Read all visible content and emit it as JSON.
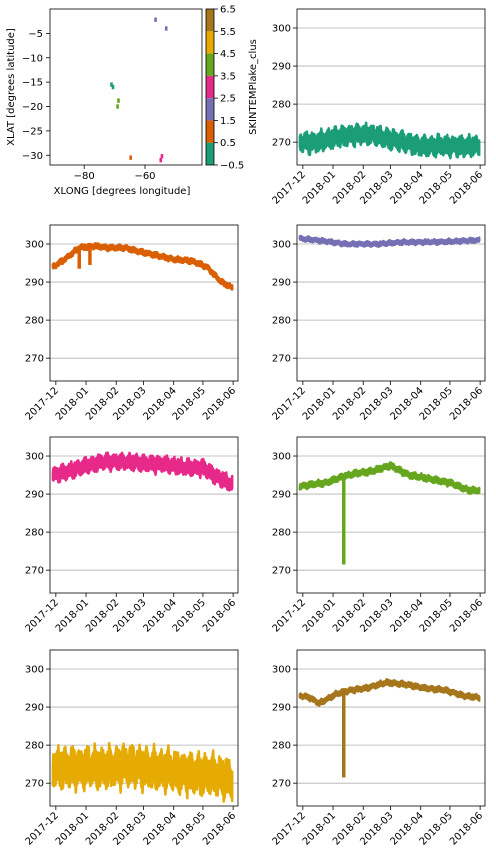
{
  "colors": {
    "cluster": [
      "#1b9e77",
      "#d95f02",
      "#7570b3",
      "#e7298a",
      "#66a61e",
      "#e6ab02",
      "#a6761d"
    ],
    "grid": "#b0b0b0",
    "axis": "#000000"
  },
  "map_panel": {
    "xlabel": "XLONG [degrees longitude]",
    "ylabel": "XLAT [degrees latitude]",
    "x_ticks": [
      "−80",
      "−60"
    ],
    "y_ticks": [
      "−5",
      "−10",
      "−15",
      "−20",
      "−25",
      "−30"
    ],
    "colorbar_label": "SKINTEMPlake_clus",
    "colorbar_ticks": [
      "6.5",
      "5.5",
      "4.5",
      "3.5",
      "2.5",
      "1.5",
      "0.5",
      "−0.5"
    ]
  },
  "time_axis_ticks": [
    "2017-12",
    "2018-01",
    "2018-02",
    "2018-03",
    "2018-04",
    "2018-05",
    "2018-06"
  ],
  "y_axis_ticks": [
    "300",
    "290",
    "280",
    "270"
  ],
  "chart_data": [
    {
      "type": "heatmap",
      "description_source": "cluster map",
      "xlim": [
        -90,
        -40
      ],
      "ylim": [
        -32,
        0
      ],
      "xlabel": "XLONG [degrees longitude]",
      "ylabel": "XLAT [degrees latitude]",
      "colorbar": {
        "label": "SKINTEMPlake_clus",
        "range": [
          -0.5,
          6.5
        ]
      },
      "points": [
        {
          "lon": -55.3,
          "lat": -2.2,
          "cluster": 2
        },
        {
          "lon": -51.8,
          "lat": -4.0,
          "cluster": 2
        },
        {
          "lon": -69.8,
          "lat": -15.5,
          "cluster": 0
        },
        {
          "lon": -69.3,
          "lat": -16.0,
          "cluster": 0
        },
        {
          "lon": -67.5,
          "lat": -18.8,
          "cluster": 4
        },
        {
          "lon": -67.8,
          "lat": -20.0,
          "cluster": 4
        },
        {
          "lon": -63.5,
          "lat": -30.5,
          "cluster": 1
        },
        {
          "lon": -53.2,
          "lat": -30.2,
          "cluster": 3
        },
        {
          "lon": -53.6,
          "lat": -31.0,
          "cluster": 3
        }
      ]
    },
    {
      "type": "line",
      "cluster": 0,
      "ylim": [
        264,
        305
      ],
      "x_range": [
        "2017-11-28",
        "2018-05-31"
      ],
      "band": 2.5,
      "series": [
        {
          "x": [
            "2017-11-28",
            "2017-12-15",
            "2018-01-01",
            "2018-01-20",
            "2018-02-10",
            "2018-02-25",
            "2018-03-15",
            "2018-04-01",
            "2018-04-20",
            "2018-05-10",
            "2018-05-31"
          ],
          "values": [
            270,
            270,
            271,
            272,
            272,
            271,
            270,
            269,
            269,
            269,
            269
          ]
        }
      ]
    },
    {
      "type": "line",
      "cluster": 1,
      "ylim": [
        264,
        305
      ],
      "x_range": [
        "2017-11-28",
        "2018-05-31"
      ],
      "band": 0.7,
      "series": [
        {
          "x": [
            "2017-11-28",
            "2017-12-10",
            "2017-12-25",
            "2018-01-10",
            "2018-01-25",
            "2018-02-10",
            "2018-02-25",
            "2018-03-15",
            "2018-04-01",
            "2018-04-20",
            "2018-05-05",
            "2018-05-20",
            "2018-05-31"
          ],
          "values": [
            294,
            296,
            299,
            299.5,
            299,
            299,
            298,
            297,
            296,
            295.5,
            294,
            290,
            288.5
          ]
        }
      ],
      "spikes": [
        {
          "x": "2017-12-25",
          "value": 293.5
        },
        {
          "x": "2018-01-05",
          "value": 294.5
        }
      ]
    },
    {
      "type": "line",
      "cluster": 2,
      "ylim": [
        264,
        305
      ],
      "x_range": [
        "2017-11-28",
        "2018-05-31"
      ],
      "band": 0.6,
      "series": [
        {
          "x": [
            "2017-11-28",
            "2017-12-15",
            "2018-01-15",
            "2018-02-15",
            "2018-03-15",
            "2018-04-15",
            "2018-05-31"
          ],
          "values": [
            301.5,
            301,
            300,
            300,
            300.5,
            300.5,
            301
          ]
        }
      ]
    },
    {
      "type": "line",
      "cluster": 3,
      "ylim": [
        264,
        305
      ],
      "x_range": [
        "2017-11-28",
        "2018-05-31"
      ],
      "band": 2,
      "series": [
        {
          "x": [
            "2017-11-28",
            "2017-12-15",
            "2018-01-01",
            "2018-01-20",
            "2018-02-10",
            "2018-03-01",
            "2018-03-20",
            "2018-04-10",
            "2018-05-01",
            "2018-05-15",
            "2018-05-31"
          ],
          "values": [
            295,
            296,
            297.5,
            298.5,
            298.5,
            298,
            298,
            297,
            297,
            294.5,
            292.5
          ]
        }
      ]
    },
    {
      "type": "line",
      "cluster": 4,
      "ylim": [
        264,
        305
      ],
      "x_range": [
        "2017-11-28",
        "2018-05-31"
      ],
      "band": 0.8,
      "series": [
        {
          "x": [
            "2017-11-28",
            "2017-12-10",
            "2017-12-25",
            "2018-01-10",
            "2018-01-25",
            "2018-02-10",
            "2018-03-01",
            "2018-03-20",
            "2018-04-10",
            "2018-05-01",
            "2018-05-20",
            "2018-05-31"
          ],
          "values": [
            292,
            292.5,
            293,
            294.5,
            295.5,
            296,
            297.5,
            295,
            294,
            293,
            291,
            291
          ]
        }
      ],
      "spikes": [
        {
          "x": "2018-01-12",
          "value": 271.5
        }
      ]
    },
    {
      "type": "line",
      "cluster": 5,
      "ylim": [
        264,
        305
      ],
      "x_range": [
        "2017-11-28",
        "2018-05-31"
      ],
      "band": 5,
      "series": [
        {
          "x": [
            "2017-11-28",
            "2017-12-20",
            "2018-01-15",
            "2018-02-10",
            "2018-03-05",
            "2018-04-01",
            "2018-04-25",
            "2018-05-15",
            "2018-05-31"
          ],
          "values": [
            274,
            274,
            274,
            274.5,
            274,
            273,
            272.5,
            272,
            271
          ]
        }
      ]
    },
    {
      "type": "line",
      "cluster": 6,
      "ylim": [
        264,
        305
      ],
      "x_range": [
        "2017-11-28",
        "2018-05-31"
      ],
      "band": 0.7,
      "series": [
        {
          "x": [
            "2017-11-28",
            "2017-12-08",
            "2017-12-18",
            "2018-01-05",
            "2018-01-20",
            "2018-02-05",
            "2018-02-25",
            "2018-03-15",
            "2018-04-05",
            "2018-04-25",
            "2018-05-15",
            "2018-05-31"
          ],
          "values": [
            293,
            292.5,
            291,
            293.5,
            294.5,
            295,
            296.5,
            296,
            295,
            294.5,
            293,
            292.5
          ]
        }
      ],
      "spikes": [
        {
          "x": "2018-01-12",
          "value": 271.5
        }
      ]
    }
  ]
}
